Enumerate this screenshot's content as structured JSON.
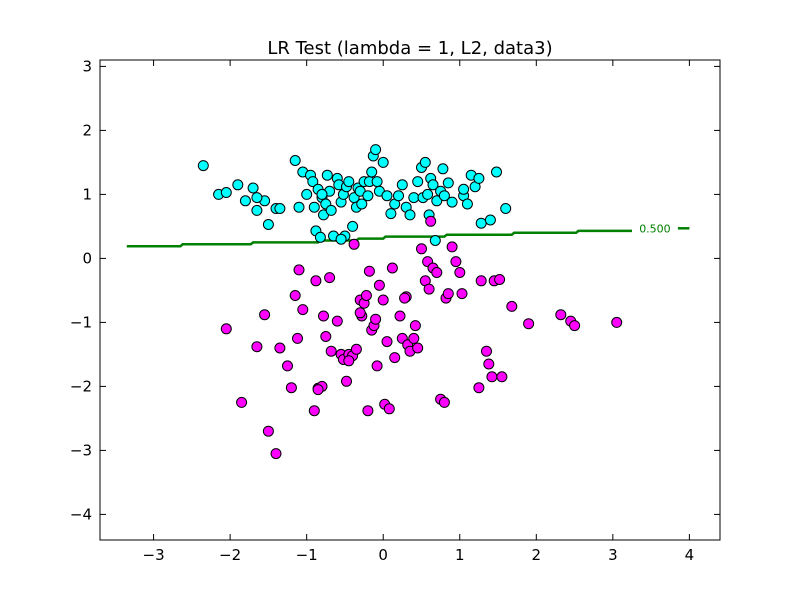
{
  "chart_data": {
    "type": "scatter",
    "title": "LR Test (lambda = 1, L2, data3)",
    "xlabel": "",
    "ylabel": "",
    "xlim": [
      -3.7,
      4.4
    ],
    "ylim": [
      -4.4,
      3.1
    ],
    "xticks": [
      -3,
      -2,
      -1,
      0,
      1,
      2,
      3,
      4
    ],
    "yticks": [
      -4,
      -3,
      -2,
      -1,
      0,
      1,
      2,
      3
    ],
    "xtick_labels": [
      "−3",
      "−2",
      "−1",
      "0",
      "1",
      "2",
      "3",
      "4"
    ],
    "ytick_labels": [
      "−4",
      "−3",
      "−2",
      "−1",
      "0",
      "1",
      "2",
      "3"
    ],
    "grid": false,
    "decision_boundary": {
      "label": "0.500",
      "color": "#008000",
      "label_position": [
        3.55,
        0.47
      ],
      "points": [
        [
          -3.35,
          0.19
        ],
        [
          -2.65,
          0.19
        ],
        [
          -2.62,
          0.22
        ],
        [
          -2.1,
          0.22
        ],
        [
          -1.73,
          0.22
        ],
        [
          -1.7,
          0.25
        ],
        [
          -0.85,
          0.25
        ],
        [
          -0.82,
          0.28
        ],
        [
          -0.35,
          0.28
        ],
        [
          -0.32,
          0.31
        ],
        [
          0.0,
          0.31
        ],
        [
          0.03,
          0.34
        ],
        [
          0.8,
          0.34
        ],
        [
          0.83,
          0.37
        ],
        [
          1.68,
          0.37
        ],
        [
          1.71,
          0.4
        ],
        [
          2.52,
          0.4
        ],
        [
          2.55,
          0.43
        ],
        [
          3.25,
          0.43
        ]
      ],
      "points_after_label": [
        [
          3.85,
          0.47
        ],
        [
          4.0,
          0.47
        ]
      ]
    },
    "series": [
      {
        "color": "#00ffff",
        "points": [
          [
            -2.35,
            1.45
          ],
          [
            -2.15,
            1.0
          ],
          [
            -2.05,
            1.03
          ],
          [
            -1.9,
            1.15
          ],
          [
            -1.8,
            0.9
          ],
          [
            -1.7,
            1.1
          ],
          [
            -1.65,
            0.75
          ],
          [
            -1.55,
            0.9
          ],
          [
            -1.5,
            0.53
          ],
          [
            -1.4,
            0.78
          ],
          [
            -1.35,
            0.78
          ],
          [
            -1.15,
            1.53
          ],
          [
            -1.1,
            0.8
          ],
          [
            -1.05,
            1.35
          ],
          [
            -1.0,
            1.0
          ],
          [
            -0.95,
            1.3
          ],
          [
            -0.92,
            1.2
          ],
          [
            -0.9,
            0.8
          ],
          [
            -0.88,
            0.43
          ],
          [
            -0.85,
            1.08
          ],
          [
            -0.82,
            0.33
          ],
          [
            -0.8,
            0.95
          ],
          [
            -0.78,
            0.68
          ],
          [
            -0.75,
            0.85
          ],
          [
            -0.73,
            1.3
          ],
          [
            -0.7,
            1.05
          ],
          [
            -0.68,
            0.75
          ],
          [
            -0.65,
            0.35
          ],
          [
            -0.6,
            1.25
          ],
          [
            -0.58,
            1.15
          ],
          [
            -0.55,
            0.88
          ],
          [
            -0.52,
            1.0
          ],
          [
            -0.5,
            0.35
          ],
          [
            -0.48,
            1.12
          ],
          [
            -0.45,
            1.2
          ],
          [
            -0.4,
            0.5
          ],
          [
            -0.38,
            0.95
          ],
          [
            -0.35,
            0.8
          ],
          [
            -0.33,
            1.1
          ],
          [
            -0.3,
            1.05
          ],
          [
            -0.28,
            0.85
          ],
          [
            -0.25,
            1.2
          ],
          [
            -0.2,
            0.98
          ],
          [
            -0.18,
            1.2
          ],
          [
            -0.15,
            1.35
          ],
          [
            -0.13,
            1.6
          ],
          [
            -0.1,
            1.7
          ],
          [
            -0.08,
            1.2
          ],
          [
            -0.05,
            1.05
          ],
          [
            0.0,
            1.5
          ],
          [
            0.05,
            0.98
          ],
          [
            0.1,
            0.7
          ],
          [
            0.15,
            0.85
          ],
          [
            0.2,
            0.98
          ],
          [
            0.25,
            1.15
          ],
          [
            0.3,
            0.8
          ],
          [
            0.35,
            0.68
          ],
          [
            0.4,
            0.95
          ],
          [
            0.45,
            1.2
          ],
          [
            0.5,
            1.42
          ],
          [
            0.52,
            0.95
          ],
          [
            0.55,
            1.5
          ],
          [
            0.58,
            1.0
          ],
          [
            0.6,
            0.68
          ],
          [
            0.62,
            1.25
          ],
          [
            0.65,
            1.15
          ],
          [
            0.68,
            0.28
          ],
          [
            0.7,
            0.9
          ],
          [
            0.75,
            1.05
          ],
          [
            0.78,
            1.4
          ],
          [
            0.8,
            0.98
          ],
          [
            0.85,
            1.18
          ],
          [
            0.9,
            0.88
          ],
          [
            1.05,
            0.98
          ],
          [
            1.05,
            1.08
          ],
          [
            1.1,
            0.85
          ],
          [
            1.15,
            1.3
          ],
          [
            1.2,
            1.12
          ],
          [
            1.25,
            1.25
          ],
          [
            1.28,
            0.55
          ],
          [
            1.4,
            0.6
          ],
          [
            1.48,
            1.35
          ],
          [
            1.6,
            0.78
          ],
          [
            -0.8,
            1.0
          ],
          [
            -0.55,
            0.3
          ],
          [
            -1.65,
            0.95
          ]
        ]
      },
      {
        "color": "#ff00ff",
        "points": [
          [
            -2.05,
            -1.1
          ],
          [
            -1.85,
            -2.25
          ],
          [
            -1.65,
            -1.38
          ],
          [
            -1.55,
            -0.88
          ],
          [
            -1.5,
            -2.7
          ],
          [
            -1.4,
            -3.05
          ],
          [
            -1.35,
            -1.4
          ],
          [
            -1.25,
            -1.68
          ],
          [
            -1.2,
            -2.02
          ],
          [
            -1.15,
            -0.58
          ],
          [
            -1.12,
            -1.25
          ],
          [
            -1.1,
            -0.18
          ],
          [
            -1.05,
            -0.8
          ],
          [
            -0.9,
            -2.38
          ],
          [
            -0.88,
            -0.35
          ],
          [
            -0.85,
            -2.03
          ],
          [
            -0.8,
            -2.0
          ],
          [
            -0.78,
            -0.9
          ],
          [
            -0.75,
            -1.22
          ],
          [
            -0.7,
            -0.3
          ],
          [
            -0.68,
            -1.45
          ],
          [
            -0.6,
            -0.98
          ],
          [
            -0.55,
            -1.5
          ],
          [
            -0.52,
            -1.58
          ],
          [
            -0.48,
            -1.92
          ],
          [
            -0.45,
            -1.5
          ],
          [
            -0.4,
            -1.52
          ],
          [
            -0.38,
            0.22
          ],
          [
            -0.35,
            -1.42
          ],
          [
            -0.3,
            -0.65
          ],
          [
            -0.28,
            -0.9
          ],
          [
            -0.25,
            -0.7
          ],
          [
            -0.22,
            -0.58
          ],
          [
            -0.2,
            -2.38
          ],
          [
            -0.18,
            -0.2
          ],
          [
            -0.15,
            -1.12
          ],
          [
            -0.12,
            -1.05
          ],
          [
            -0.1,
            -0.95
          ],
          [
            -0.08,
            -1.68
          ],
          [
            -0.05,
            -0.42
          ],
          [
            0.0,
            -0.65
          ],
          [
            0.02,
            -2.28
          ],
          [
            0.05,
            -1.3
          ],
          [
            0.08,
            -2.35
          ],
          [
            0.12,
            -0.15
          ],
          [
            0.15,
            -1.55
          ],
          [
            0.25,
            -1.25
          ],
          [
            0.3,
            -0.6
          ],
          [
            0.32,
            -1.35
          ],
          [
            0.35,
            -1.45
          ],
          [
            0.4,
            -1.25
          ],
          [
            0.45,
            -1.4
          ],
          [
            0.5,
            0.15
          ],
          [
            0.55,
            -0.35
          ],
          [
            0.58,
            -0.05
          ],
          [
            0.6,
            -0.48
          ],
          [
            0.62,
            0.58
          ],
          [
            0.65,
            -0.15
          ],
          [
            0.7,
            -0.22
          ],
          [
            0.75,
            -2.2
          ],
          [
            0.8,
            -2.25
          ],
          [
            0.82,
            -0.62
          ],
          [
            0.85,
            -0.55
          ],
          [
            0.9,
            0.18
          ],
          [
            0.95,
            -0.05
          ],
          [
            1.0,
            -0.22
          ],
          [
            1.03,
            -0.55
          ],
          [
            1.25,
            -2.02
          ],
          [
            1.28,
            -0.35
          ],
          [
            1.35,
            -1.45
          ],
          [
            1.38,
            -1.65
          ],
          [
            1.42,
            -1.85
          ],
          [
            1.45,
            -0.35
          ],
          [
            1.52,
            -0.33
          ],
          [
            1.55,
            -1.85
          ],
          [
            1.68,
            -0.75
          ],
          [
            1.9,
            -1.02
          ],
          [
            2.32,
            -0.88
          ],
          [
            2.45,
            -0.98
          ],
          [
            2.5,
            -1.05
          ],
          [
            3.05,
            -1.0
          ],
          [
            -0.3,
            -0.85
          ],
          [
            0.28,
            -0.62
          ],
          [
            0.42,
            -1.05
          ],
          [
            0.22,
            -0.9
          ],
          [
            -0.85,
            -2.05
          ],
          [
            -0.45,
            -1.6
          ]
        ]
      }
    ]
  }
}
